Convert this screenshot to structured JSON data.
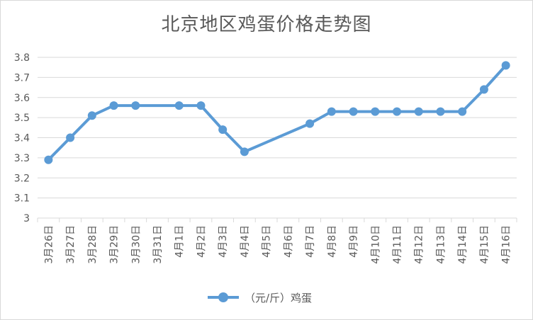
{
  "chart_data": {
    "type": "line",
    "title": "北京地区鸡蛋价格走势图",
    "xlabel": "",
    "ylabel": "",
    "categories": [
      "3月26日",
      "3月27日",
      "3月28日",
      "3月29日",
      "3月30日",
      "3月31日",
      "4月1日",
      "4月2日",
      "4月3日",
      "4月4日",
      "4月5日",
      "4月6日",
      "4月7日",
      "4月8日",
      "4月9日",
      "4月10日",
      "4月11日",
      "4月12日",
      "4月13日",
      "4月14日",
      "4月15日",
      "4月16日"
    ],
    "ylim": [
      3,
      3.8
    ],
    "yticks": [
      "3",
      "3.1",
      "3.2",
      "3.3",
      "3.4",
      "3.5",
      "3.6",
      "3.7",
      "3.8"
    ],
    "grid": true,
    "legend_position": "bottom",
    "series": [
      {
        "name": "（元/斤）鸡蛋",
        "color": "#5b9bd5",
        "values": [
          3.29,
          3.4,
          3.51,
          3.56,
          3.56,
          null,
          3.56,
          3.56,
          3.44,
          3.33,
          null,
          null,
          3.47,
          3.53,
          3.53,
          3.53,
          3.53,
          3.53,
          3.53,
          3.53,
          3.64,
          3.76
        ]
      }
    ]
  }
}
